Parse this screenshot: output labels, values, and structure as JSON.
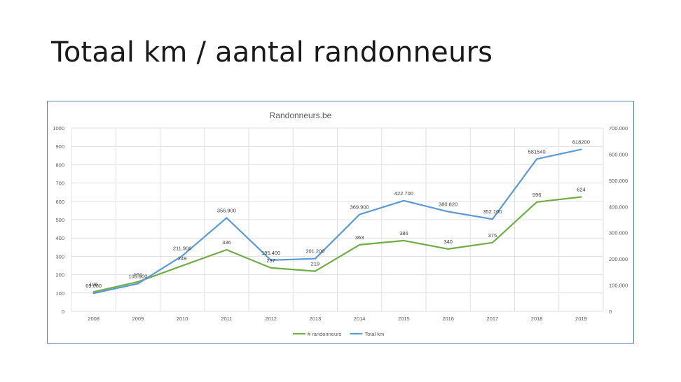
{
  "slide": {
    "title": "Totaal km / aantal randonneurs"
  },
  "chart_data": {
    "type": "line",
    "title": "Randonneurs.be",
    "categories": [
      "2008",
      "2009",
      "2010",
      "2011",
      "2012",
      "2013",
      "2014",
      "2015",
      "2016",
      "2017",
      "2018",
      "2019"
    ],
    "series": [
      {
        "name": "# randonneurs",
        "axis": "left",
        "color": "#70ad47",
        "values": [
          106,
          161,
          249,
          336,
          237,
          219,
          363,
          386,
          340,
          375,
          596,
          624
        ],
        "labels": [
          "106",
          "161",
          "249",
          "336",
          "237",
          "219",
          "363",
          "386",
          "340",
          "375",
          "596",
          "624"
        ]
      },
      {
        "name": "Total km",
        "axis": "right",
        "color": "#5b9bd5",
        "values": [
          69000,
          105900,
          211900,
          356900,
          195400,
          201200,
          369900,
          422700,
          380820,
          352100,
          581540,
          618200
        ],
        "labels": [
          "69.000",
          "105.900",
          "211.900",
          "356.900",
          "195.400",
          "201.200",
          "369.900",
          "422.700",
          "380.820",
          "352.100",
          "581540",
          "618200"
        ]
      }
    ],
    "y_left": {
      "min": 0,
      "max": 1000,
      "step": 100,
      "ticks": [
        "0",
        "100",
        "200",
        "300",
        "400",
        "500",
        "600",
        "700",
        "800",
        "900",
        "1000"
      ]
    },
    "y_right": {
      "min": 0,
      "max": 700000,
      "step": 100000,
      "ticks": [
        "0",
        "100.000",
        "200.000",
        "300.000",
        "400.000",
        "500.000",
        "600.000",
        "700.000"
      ]
    },
    "grid": true,
    "legend_position": "bottom"
  }
}
